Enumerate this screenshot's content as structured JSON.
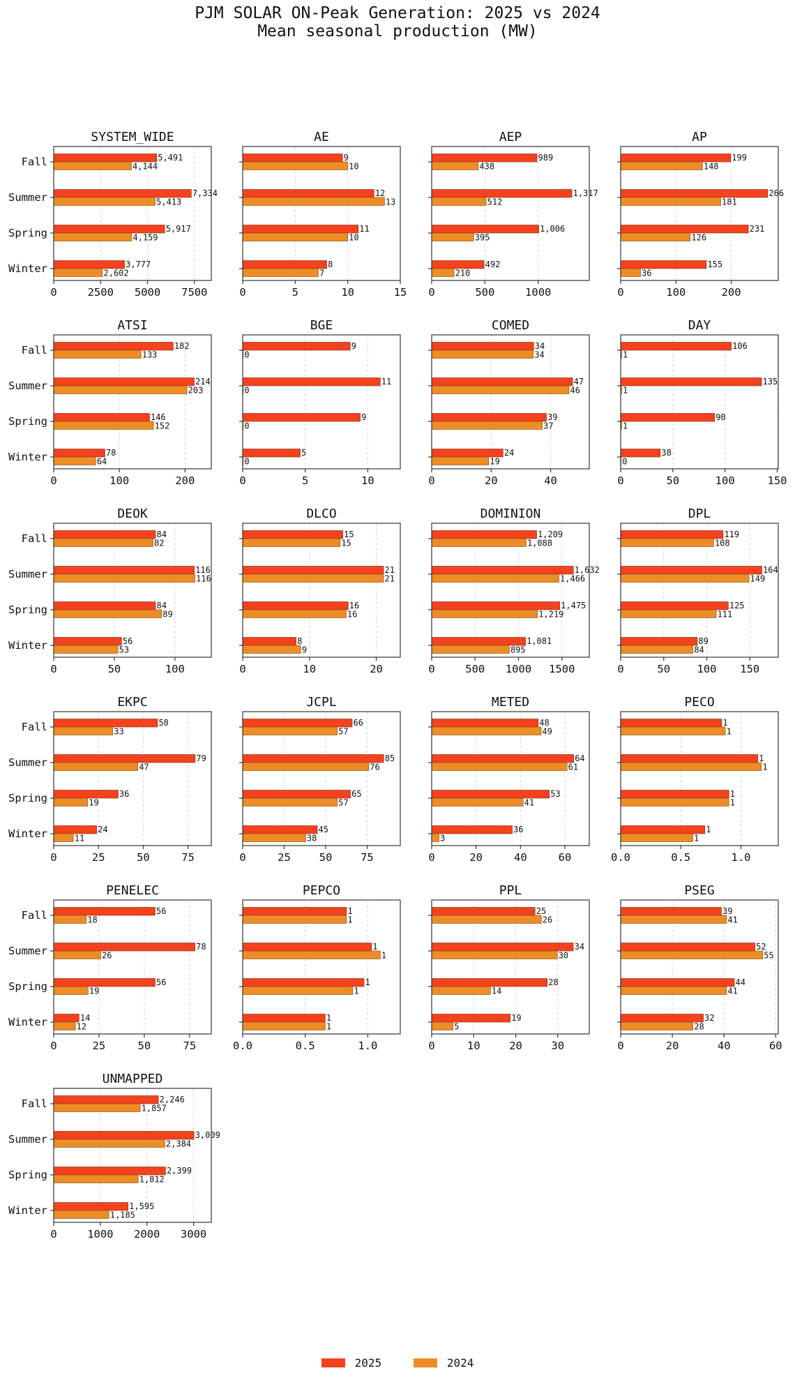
{
  "title": {
    "line1": "PJM SOLAR ON-Peak Generation: 2025 vs 2024",
    "line2": "Mean seasonal production (MW)"
  },
  "legend": {
    "items": [
      {
        "label": "2025",
        "color": "#f5421e"
      },
      {
        "label": "2024",
        "color": "#ee8c25"
      }
    ],
    "placement": "bottom-center"
  },
  "chart_data": {
    "type": "bar",
    "orientation": "horizontal",
    "categories": [
      "Fall",
      "Summer",
      "Spring",
      "Winter"
    ],
    "series_names": [
      "2025",
      "2024"
    ],
    "colors": {
      "2025": "#f5421e",
      "2024": "#ee8c25"
    },
    "grid": "x-dashed",
    "panels": [
      {
        "title": "SYSTEM_WIDE",
        "xlim": [
          0,
          8400
        ],
        "ticks": [
          "0",
          "2500",
          "5000",
          "7500"
        ],
        "tick_values": [
          0,
          2500,
          5000,
          7500
        ],
        "v2025": [
          5491,
          7334,
          5917,
          3777
        ],
        "v2024": [
          4144,
          5413,
          4159,
          2602
        ],
        "l2025": [
          "5,491",
          "7,334",
          "5,917",
          "3,777"
        ],
        "l2024": [
          "4,144",
          "5,413",
          "4,159",
          "2,602"
        ]
      },
      {
        "title": "AE",
        "xlim": [
          0,
          15
        ],
        "ticks": [
          "0",
          "5",
          "10",
          "15"
        ],
        "tick_values": [
          0,
          5,
          10,
          15
        ],
        "v2025": [
          9.5,
          12.5,
          11.0,
          8.0
        ],
        "v2024": [
          10.0,
          13.5,
          10.0,
          7.2
        ],
        "l2025": [
          "9",
          "12",
          "11",
          "8"
        ],
        "l2024": [
          "10",
          "13",
          "10",
          "7"
        ]
      },
      {
        "title": "AEP",
        "xlim": [
          0,
          1480
        ],
        "ticks": [
          "0",
          "500",
          "1000"
        ],
        "tick_values": [
          0,
          500,
          1000
        ],
        "v2025": [
          989,
          1317,
          1006,
          492
        ],
        "v2024": [
          438,
          512,
          395,
          210
        ],
        "l2025": [
          "989",
          "1,317",
          "1,006",
          "492"
        ],
        "l2024": [
          "438",
          "512",
          "395",
          "210"
        ]
      },
      {
        "title": "AP",
        "xlim": [
          0,
          285
        ],
        "ticks": [
          "0",
          "100",
          "200"
        ],
        "tick_values": [
          0,
          100,
          200
        ],
        "v2025": [
          199,
          266,
          231,
          155
        ],
        "v2024": [
          148,
          181,
          126,
          36
        ],
        "l2025": [
          "199",
          "266",
          "231",
          "155"
        ],
        "l2024": [
          "148",
          "181",
          "126",
          "36"
        ]
      },
      {
        "title": "ATSI",
        "xlim": [
          0,
          240
        ],
        "ticks": [
          "0",
          "100",
          "200"
        ],
        "tick_values": [
          0,
          100,
          200
        ],
        "v2025": [
          182,
          214,
          146,
          78
        ],
        "v2024": [
          133,
          203,
          152,
          64
        ],
        "l2025": [
          "182",
          "214",
          "146",
          "78"
        ],
        "l2024": [
          "133",
          "203",
          "152",
          "64"
        ]
      },
      {
        "title": "BGE",
        "xlim": [
          0,
          12.6
        ],
        "ticks": [
          "0",
          "5",
          "10"
        ],
        "tick_values": [
          0,
          5,
          10
        ],
        "v2025": [
          8.6,
          11.0,
          9.4,
          4.6
        ],
        "v2024": [
          0.05,
          0.05,
          0.05,
          0.05
        ],
        "l2025": [
          "9",
          "11",
          "9",
          "5"
        ],
        "l2024": [
          "0",
          "0",
          "0",
          "0"
        ]
      },
      {
        "title": "COMED",
        "xlim": [
          0,
          53
        ],
        "ticks": [
          "0",
          "20",
          "40"
        ],
        "tick_values": [
          0,
          20,
          40
        ],
        "v2025": [
          34.3,
          47.4,
          38.6,
          24.0
        ],
        "v2024": [
          34.2,
          46.2,
          37.2,
          19.2
        ],
        "l2025": [
          "34",
          "47",
          "39",
          "24"
        ],
        "l2024": [
          "34",
          "46",
          "37",
          "19"
        ]
      },
      {
        "title": "DAY",
        "xlim": [
          0,
          151
        ],
        "ticks": [
          "0",
          "50",
          "100",
          "150"
        ],
        "tick_values": [
          0,
          50,
          100,
          150
        ],
        "v2025": [
          106,
          135,
          90,
          38
        ],
        "v2024": [
          1,
          1,
          1,
          0.3
        ],
        "l2025": [
          "106",
          "135",
          "90",
          "38"
        ],
        "l2024": [
          "1",
          "1",
          "1",
          "0"
        ]
      },
      {
        "title": "DEOK",
        "xlim": [
          0,
          130
        ],
        "ticks": [
          "0",
          "50",
          "100"
        ],
        "tick_values": [
          0,
          50,
          100
        ],
        "v2025": [
          84,
          116,
          84,
          56
        ],
        "v2024": [
          82,
          116.5,
          89,
          53
        ],
        "l2025": [
          "84",
          "116",
          "84",
          "56"
        ],
        "l2024": [
          "82",
          "116",
          "89",
          "53"
        ]
      },
      {
        "title": "DLCO",
        "xlim": [
          0,
          23.6
        ],
        "ticks": [
          "0",
          "10",
          "20"
        ],
        "tick_values": [
          0,
          10,
          20
        ],
        "v2025": [
          15.0,
          21.1,
          15.8,
          8.0
        ],
        "v2024": [
          14.6,
          21.1,
          15.5,
          8.7
        ],
        "l2025": [
          "15",
          "21",
          "16",
          "8"
        ],
        "l2024": [
          "15",
          "21",
          "16",
          "9"
        ]
      },
      {
        "title": "DOMINION",
        "xlim": [
          0,
          1815
        ],
        "ticks": [
          "0",
          "500",
          "1000",
          "1500"
        ],
        "tick_values": [
          0,
          500,
          1000,
          1500
        ],
        "v2025": [
          1209,
          1632,
          1475,
          1081
        ],
        "v2024": [
          1088,
          1466,
          1219,
          895
        ],
        "l2025": [
          "1,209",
          "1,632",
          "1,475",
          "1,081"
        ],
        "l2024": [
          "1,088",
          "1,466",
          "1,219",
          "895"
        ]
      },
      {
        "title": "DPL",
        "xlim": [
          0,
          183
        ],
        "ticks": [
          "0",
          "50",
          "100",
          "150"
        ],
        "tick_values": [
          0,
          50,
          100,
          150
        ],
        "v2025": [
          119,
          164,
          125,
          89
        ],
        "v2024": [
          108,
          149,
          111,
          84
        ],
        "l2025": [
          "119",
          "164",
          "125",
          "89"
        ],
        "l2024": [
          "108",
          "149",
          "111",
          "84"
        ]
      },
      {
        "title": "EKPC",
        "xlim": [
          0,
          88
        ],
        "ticks": [
          "0",
          "25",
          "50",
          "75"
        ],
        "tick_values": [
          0,
          25,
          50,
          75
        ],
        "v2025": [
          58,
          79,
          36,
          24
        ],
        "v2024": [
          33,
          47,
          19,
          11
        ],
        "l2025": [
          "58",
          "79",
          "36",
          "24"
        ],
        "l2024": [
          "33",
          "47",
          "19",
          "11"
        ]
      },
      {
        "title": "JCPL",
        "xlim": [
          0,
          95
        ],
        "ticks": [
          "0",
          "25",
          "50",
          "75"
        ],
        "tick_values": [
          0,
          25,
          50,
          75
        ],
        "v2025": [
          66,
          85,
          65,
          45
        ],
        "v2024": [
          57,
          76,
          57,
          38
        ],
        "l2025": [
          "66",
          "85",
          "65",
          "45"
        ],
        "l2024": [
          "57",
          "76",
          "57",
          "38"
        ]
      },
      {
        "title": "METED",
        "xlim": [
          0,
          71
        ],
        "ticks": [
          "0",
          "20",
          "40",
          "60"
        ],
        "tick_values": [
          0,
          20,
          40,
          60
        ],
        "v2025": [
          48,
          64,
          53,
          36.3
        ],
        "v2024": [
          49.3,
          61,
          41.2,
          3.3
        ],
        "l2025": [
          "48",
          "64",
          "53",
          "36"
        ],
        "l2024": [
          "49",
          "61",
          "41",
          "3"
        ]
      },
      {
        "title": "PECO",
        "xlim": [
          0,
          1.31
        ],
        "ticks": [
          "0.0",
          "0.5",
          "1.0"
        ],
        "tick_values": [
          0,
          0.5,
          1.0
        ],
        "v2025": [
          0.84,
          1.14,
          0.9,
          0.7
        ],
        "v2024": [
          0.87,
          1.17,
          0.9,
          0.6
        ],
        "l2025": [
          "1",
          "1",
          "1",
          "1"
        ],
        "l2024": [
          "1",
          "1",
          "1",
          "1"
        ]
      },
      {
        "title": "PENELEC",
        "xlim": [
          0,
          87
        ],
        "ticks": [
          "0",
          "25",
          "50",
          "75"
        ],
        "tick_values": [
          0,
          25,
          50,
          75
        ],
        "v2025": [
          56,
          78,
          56,
          14
        ],
        "v2024": [
          18,
          26,
          19,
          12
        ],
        "l2025": [
          "56",
          "78",
          "56",
          "14"
        ],
        "l2024": [
          "18",
          "26",
          "19",
          "12"
        ]
      },
      {
        "title": "PEPCO",
        "xlim": [
          0,
          1.26
        ],
        "ticks": [
          "0.0",
          "0.5",
          "1.0"
        ],
        "tick_values": [
          0,
          0.5,
          1.0
        ],
        "v2025": [
          0.83,
          1.03,
          0.97,
          0.66
        ],
        "v2024": [
          0.83,
          1.1,
          0.88,
          0.66
        ],
        "l2025": [
          "1",
          "1",
          "1",
          "1"
        ],
        "l2024": [
          "1",
          "1",
          "1",
          "1"
        ]
      },
      {
        "title": "PPL",
        "xlim": [
          0,
          37.5
        ],
        "ticks": [
          "0",
          "10",
          "20",
          "30"
        ],
        "tick_values": [
          0,
          10,
          20,
          30
        ],
        "v2025": [
          24.6,
          33.7,
          27.5,
          18.7
        ],
        "v2024": [
          26.1,
          29.9,
          14.0,
          5.1
        ],
        "l2025": [
          "25",
          "34",
          "28",
          "19"
        ],
        "l2024": [
          "26",
          "30",
          "14",
          "5"
        ]
      },
      {
        "title": "PSEG",
        "xlim": [
          0,
          61
        ],
        "ticks": [
          "0",
          "20",
          "40",
          "60"
        ],
        "tick_values": [
          0,
          20,
          40,
          60
        ],
        "v2025": [
          39,
          52,
          44,
          32
        ],
        "v2024": [
          41,
          55,
          41,
          28
        ],
        "l2025": [
          "39",
          "52",
          "44",
          "32"
        ],
        "l2024": [
          "41",
          "55",
          "41",
          "28"
        ]
      },
      {
        "title": "UNMAPPED",
        "xlim": [
          0,
          3380
        ],
        "ticks": [
          "0",
          "1000",
          "2000",
          "3000"
        ],
        "tick_values": [
          0,
          1000,
          2000,
          3000
        ],
        "v2025": [
          2246,
          3009,
          2399,
          1595
        ],
        "v2024": [
          1857,
          2384,
          1812,
          1185
        ],
        "l2025": [
          "2,246",
          "3,009",
          "2,399",
          "1,595"
        ],
        "l2024": [
          "1,857",
          "2,384",
          "1,812",
          "1,185"
        ]
      }
    ]
  }
}
